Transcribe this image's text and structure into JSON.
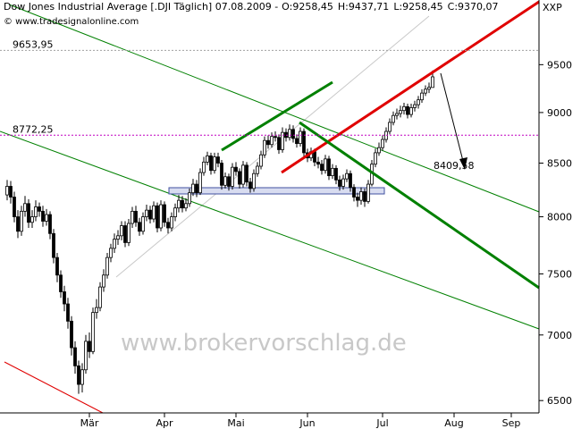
{
  "chart_data": {
    "type": "candlestick",
    "title": "Dow Jones Industrial Average [.DJI  Täglich] 07.08.2009 -",
    "ohlc_labels": [
      {
        "label": "O:9258,45",
        "color": "#008000"
      },
      {
        "label": "H:9437,71",
        "color": "#000000"
      },
      {
        "label": "L:9258,45",
        "color": "#000000"
      },
      {
        "label": "C:9370,07",
        "color": "#008000"
      }
    ],
    "source": "© www.tradesignalonline.com",
    "watermark": "www.brokervorschlag.de",
    "axis_label": "XXP",
    "log_scale": true,
    "ylim": [
      6410,
      10220
    ],
    "yticks": [
      6500,
      7000,
      7500,
      8000,
      8500,
      9000,
      9500
    ],
    "levels": [
      {
        "value": 9653.95,
        "label": "9653,95",
        "color": "#a0a0a0"
      },
      {
        "value": 8772.25,
        "label": "8772,25",
        "color": "#c000c0"
      }
    ],
    "annotations": [
      {
        "value": 8409.58,
        "label": "8409,58"
      }
    ],
    "up_color": "#ffffff",
    "down_color": "#000000",
    "categories": [
      null,
      null,
      null,
      null,
      null,
      null,
      null,
      null,
      null,
      null,
      null,
      null,
      null,
      null,
      null,
      null,
      null,
      null,
      null,
      null,
      null,
      null,
      null,
      "Mär",
      null,
      null,
      null,
      null,
      null,
      null,
      null,
      null,
      null,
      null,
      null,
      null,
      null,
      null,
      null,
      null,
      null,
      null,
      null,
      null,
      "Apr",
      null,
      null,
      null,
      null,
      null,
      null,
      null,
      null,
      null,
      null,
      null,
      null,
      null,
      null,
      null,
      null,
      null,
      null,
      null,
      "Mai",
      null,
      null,
      null,
      null,
      null,
      null,
      null,
      null,
      null,
      null,
      null,
      null,
      null,
      null,
      null,
      null,
      null,
      null,
      null,
      "Jun",
      null,
      null,
      null,
      null,
      null,
      null,
      null,
      null,
      null,
      null,
      null,
      null,
      null,
      null,
      null,
      null,
      null,
      null,
      null,
      null,
      "Jul",
      null,
      null,
      null,
      null,
      null,
      null,
      null,
      null,
      null,
      null,
      null,
      null,
      null,
      null,
      null,
      null,
      null,
      null,
      null,
      "Aug",
      null,
      null,
      null,
      null,
      null,
      null,
      null,
      null,
      null,
      null,
      null,
      null,
      null,
      null,
      null,
      "Sep"
    ],
    "open": [
      8200,
      8280,
      8180,
      8000,
      7870,
      8050,
      8120,
      7950,
      8000,
      8090,
      8050,
      7960,
      8020,
      7850,
      7640,
      7490,
      7350,
      7250,
      7110,
      6900,
      6760,
      6620,
      6730,
      6950,
      6870,
      7180,
      7220,
      7390,
      7490,
      7640,
      7720,
      7800,
      7830,
      7920,
      7770,
      7940,
      8050,
      7950,
      7870,
      8000,
      8060,
      7980,
      8100,
      7900,
      8110,
      7950,
      7900,
      8000,
      8080,
      8150,
      8080,
      8120,
      8220,
      8300,
      8220,
      8410,
      8510,
      8570,
      8430,
      8560,
      8500,
      8290,
      8370,
      8280,
      8460,
      8420,
      8300,
      8480,
      8320,
      8260,
      8400,
      8470,
      8580,
      8720,
      8680,
      8760,
      8750,
      8630,
      8800,
      8750,
      8830,
      8740,
      8690,
      8810,
      8600,
      8550,
      8610,
      8510,
      8490,
      8430,
      8540,
      8380,
      8450,
      8340,
      8280,
      8350,
      8400,
      8270,
      8180,
      8150,
      8230,
      8140,
      8300,
      8490,
      8600,
      8650,
      8730,
      8810,
      8900,
      8970,
      8990,
      9020,
      9060,
      8980,
      9050,
      9080,
      9130,
      9200,
      9240,
      9258.45,
      null,
      null,
      null,
      null,
      null,
      null,
      null,
      null,
      null,
      null,
      null,
      null,
      null,
      null,
      null,
      null,
      null,
      null,
      null,
      null,
      null,
      null
    ],
    "high": [
      8340,
      8330,
      8230,
      8060,
      8100,
      8190,
      8160,
      8060,
      8150,
      8130,
      8100,
      8070,
      8050,
      7890,
      7680,
      7530,
      7400,
      7300,
      7150,
      6950,
      6800,
      6780,
      7000,
      7020,
      7220,
      7290,
      7430,
      7540,
      7680,
      7760,
      7850,
      7880,
      7960,
      7960,
      7980,
      8090,
      8100,
      7990,
      8040,
      8110,
      8100,
      8140,
      8130,
      8150,
      8140,
      7990,
      8040,
      8120,
      8200,
      8190,
      8170,
      8260,
      8350,
      8340,
      8450,
      8560,
      8610,
      8600,
      8600,
      8600,
      8530,
      8410,
      8400,
      8500,
      8510,
      8450,
      8520,
      8510,
      8360,
      8440,
      8510,
      8620,
      8760,
      8770,
      8800,
      8810,
      8780,
      8850,
      8840,
      8880,
      8870,
      8780,
      8850,
      8840,
      8640,
      8650,
      8640,
      8560,
      8530,
      8580,
      8570,
      8490,
      8480,
      8380,
      8390,
      8440,
      8430,
      8300,
      8220,
      8270,
      8260,
      8340,
      8530,
      8640,
      8700,
      8770,
      8850,
      8940,
      9010,
      9040,
      9070,
      9100,
      9090,
      9090,
      9120,
      9170,
      9240,
      9280,
      9310,
      9437.71,
      null,
      null,
      null,
      null,
      null,
      null,
      null,
      null,
      null,
      null,
      null,
      null,
      null,
      null,
      null,
      null,
      null,
      null,
      null,
      null,
      null,
      null
    ],
    "low": [
      8150,
      8120,
      7950,
      7810,
      7830,
      8000,
      7900,
      7900,
      7960,
      8000,
      7910,
      7920,
      7800,
      7590,
      7430,
      7300,
      7190,
      7050,
      6840,
      6700,
      6550,
      6560,
      6700,
      6820,
      6850,
      7130,
      7190,
      7350,
      7460,
      7600,
      7680,
      7750,
      7790,
      7730,
      7740,
      7900,
      7910,
      7830,
      7840,
      7960,
      7940,
      7950,
      7860,
      7870,
      7910,
      7850,
      7870,
      7960,
      8040,
      8040,
      8050,
      8090,
      8190,
      8180,
      8200,
      8380,
      8480,
      8390,
      8400,
      8460,
      8250,
      8260,
      8240,
      8250,
      8380,
      8260,
      8270,
      8280,
      8220,
      8230,
      8370,
      8440,
      8550,
      8640,
      8650,
      8710,
      8590,
      8600,
      8710,
      8720,
      8700,
      8650,
      8660,
      8560,
      8510,
      8520,
      8470,
      8450,
      8390,
      8400,
      8340,
      8350,
      8300,
      8240,
      8250,
      8320,
      8230,
      8140,
      8090,
      8110,
      8090,
      8120,
      8280,
      8460,
      8570,
      8620,
      8700,
      8780,
      8870,
      8930,
      8950,
      8980,
      8940,
      8950,
      9010,
      9040,
      9100,
      9170,
      9200,
      9258.45,
      null,
      null,
      null,
      null,
      null,
      null,
      null,
      null,
      null,
      null,
      null,
      null,
      null,
      null,
      null,
      null,
      null,
      null,
      null,
      null,
      null,
      null
    ],
    "close": [
      8280,
      8180,
      8000,
      7870,
      8050,
      8120,
      7950,
      8000,
      8090,
      8050,
      7960,
      8020,
      7850,
      7640,
      7490,
      7350,
      7250,
      7110,
      6900,
      6760,
      6620,
      6730,
      6950,
      6870,
      7180,
      7220,
      7390,
      7490,
      7640,
      7720,
      7800,
      7830,
      7920,
      7770,
      7940,
      8050,
      7950,
      7870,
      8000,
      8060,
      7980,
      8100,
      7900,
      8110,
      7950,
      7900,
      8000,
      8080,
      8150,
      8080,
      8120,
      8220,
      8300,
      8220,
      8410,
      8510,
      8570,
      8430,
      8560,
      8500,
      8290,
      8370,
      8280,
      8460,
      8420,
      8300,
      8480,
      8320,
      8260,
      8400,
      8470,
      8580,
      8720,
      8680,
      8760,
      8750,
      8630,
      8800,
      8750,
      8830,
      8740,
      8690,
      8810,
      8600,
      8550,
      8610,
      8510,
      8490,
      8430,
      8540,
      8380,
      8450,
      8340,
      8280,
      8350,
      8400,
      8270,
      8180,
      8150,
      8230,
      8140,
      8300,
      8490,
      8600,
      8650,
      8730,
      8810,
      8900,
      8970,
      8990,
      9020,
      9060,
      8980,
      9050,
      9080,
      9130,
      9200,
      9240,
      9260,
      9370.07,
      null,
      null,
      null,
      null,
      null,
      null,
      null,
      null,
      null,
      null,
      null,
      null,
      null,
      null,
      null,
      null,
      null,
      null,
      null,
      null,
      null,
      null
    ]
  }
}
